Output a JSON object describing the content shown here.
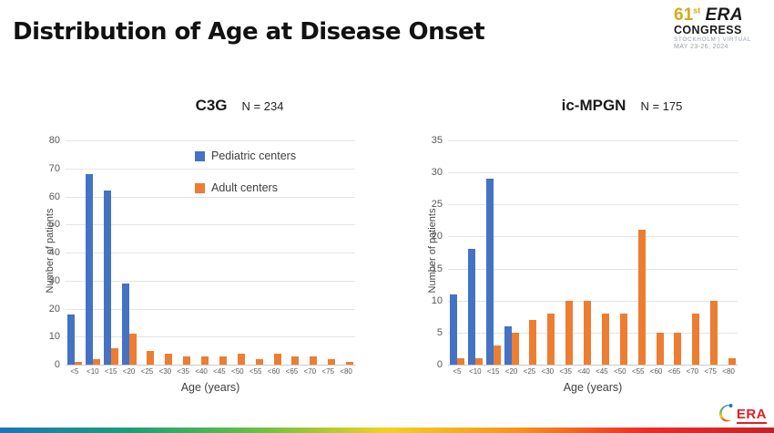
{
  "slide": {
    "title": "Distribution of Age at Disease Onset",
    "congress_logo": {
      "number": "61",
      "suffix": "st",
      "era": "ERA",
      "congress": "CONGRESS",
      "location": "STOCKHOLM | VIRTUAL",
      "dates": "MAY 23-26, 2024"
    },
    "footer_logo": {
      "text": "ERA"
    }
  },
  "legend": {
    "items": [
      {
        "label": "Pediatric centers",
        "color": "#4472C4"
      },
      {
        "label": "Adult centers",
        "color": "#ED7D31"
      }
    ]
  },
  "colors": {
    "pediatric": "#4472C4",
    "adult": "#ED7D31",
    "gridline": "#E4E4E4",
    "axis_text": "#595959"
  },
  "chart_data": [
    {
      "type": "bar",
      "title": "C3G",
      "n_label": "N = 234",
      "categories": [
        "<5",
        "<10",
        "<15",
        "<20",
        "<25",
        "<30",
        "<35",
        "<40",
        "<45",
        "<50",
        "<55",
        "<60",
        "<65",
        "<70",
        "<75",
        "<80"
      ],
      "series": [
        {
          "name": "Pediatric centers",
          "color": "#4472C4",
          "values": [
            18,
            68,
            62,
            29,
            0,
            0,
            0,
            0,
            0,
            0,
            0,
            0,
            0,
            0,
            0,
            0
          ]
        },
        {
          "name": "Adult centers",
          "color": "#ED7D31",
          "values": [
            1,
            2,
            6,
            11,
            5,
            4,
            3,
            3,
            3,
            4,
            2,
            4,
            3,
            3,
            2,
            1
          ]
        }
      ],
      "xlabel": "Age (years)",
      "ylabel": "Number of patients",
      "ylim": [
        0,
        80
      ],
      "ytick_step": 10,
      "grid": true,
      "legend_position": "top-inside"
    },
    {
      "type": "bar",
      "title": "ic-MPGN",
      "n_label": "N = 175",
      "categories": [
        "<5",
        "<10",
        "<15",
        "<20",
        "<25",
        "<30",
        "<35",
        "<40",
        "<45",
        "<50",
        "<55",
        "<60",
        "<65",
        "<70",
        "<75",
        "<80"
      ],
      "series": [
        {
          "name": "Pediatric centers",
          "color": "#4472C4",
          "values": [
            11,
            18,
            29,
            6,
            0,
            0,
            0,
            0,
            0,
            0,
            0,
            0,
            0,
            0,
            0,
            0
          ]
        },
        {
          "name": "Adult centers",
          "color": "#ED7D31",
          "values": [
            1,
            1,
            3,
            5,
            7,
            8,
            10,
            10,
            8,
            8,
            21,
            5,
            5,
            8,
            10,
            1
          ]
        }
      ],
      "xlabel": "Age (years)",
      "ylabel": "Number of patients",
      "ylim": [
        0,
        35
      ],
      "ytick_step": 5,
      "grid": true,
      "legend_position": "none"
    }
  ]
}
